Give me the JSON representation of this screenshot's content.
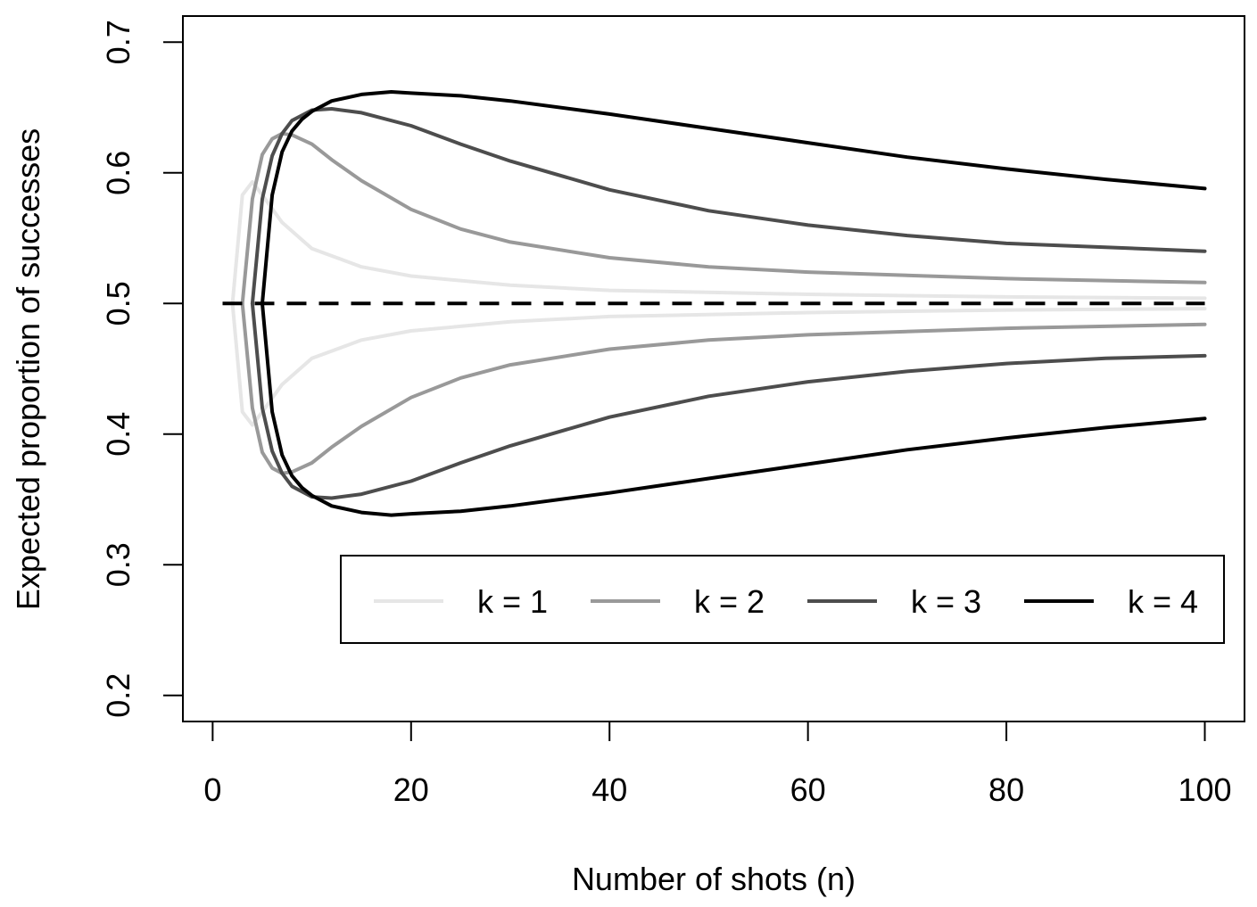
{
  "chart_data": {
    "type": "line",
    "title": "",
    "xlabel": "Number of shots (n)",
    "ylabel": "Expected proportion of successes",
    "xlim": [
      -3,
      104
    ],
    "ylim": [
      0.18,
      0.72
    ],
    "x_ticks": [
      0,
      20,
      40,
      60,
      80,
      100
    ],
    "x_tick_labels": [
      "0",
      "20",
      "40",
      "60",
      "80",
      "100"
    ],
    "y_ticks": [
      0.2,
      0.3,
      0.4,
      0.5,
      0.6,
      0.7
    ],
    "y_tick_labels": [
      "0.2",
      "0.3",
      "0.4",
      "0.5",
      "0.6",
      "0.7"
    ],
    "grid": false,
    "legend": {
      "placement": "bottom-right",
      "layout": "horizontal",
      "entries": [
        {
          "label": "k = 1",
          "color": "#e6e6e6"
        },
        {
          "label": "k = 2",
          "color": "#999999"
        },
        {
          "label": "k = 3",
          "color": "#4d4d4d"
        },
        {
          "label": "k = 4",
          "color": "#000000"
        }
      ]
    },
    "reference_line": {
      "y": 0.5,
      "x_range": [
        1,
        100
      ],
      "style": "dashed",
      "color": "#000000"
    },
    "series": [
      {
        "name": "k = 1",
        "color": "#e6e6e6",
        "branch": "upper",
        "x": [
          2,
          3,
          4,
          5,
          7,
          10,
          15,
          20,
          30,
          40,
          60,
          80,
          100
        ],
        "y": [
          0.5,
          0.583,
          0.593,
          0.583,
          0.562,
          0.542,
          0.528,
          0.521,
          0.514,
          0.51,
          0.507,
          0.505,
          0.504
        ]
      },
      {
        "name": "k = 1",
        "color": "#e6e6e6",
        "branch": "lower",
        "x": [
          2,
          3,
          4,
          5,
          7,
          10,
          15,
          20,
          30,
          40,
          60,
          80,
          100
        ],
        "y": [
          0.5,
          0.417,
          0.407,
          0.417,
          0.438,
          0.458,
          0.472,
          0.479,
          0.486,
          0.49,
          0.493,
          0.495,
          0.496
        ]
      },
      {
        "name": "k = 2",
        "color": "#999999",
        "branch": "upper",
        "x": [
          3,
          4,
          5,
          6,
          7,
          8,
          10,
          12,
          15,
          20,
          25,
          30,
          40,
          50,
          60,
          80,
          100
        ],
        "y": [
          0.5,
          0.58,
          0.614,
          0.626,
          0.63,
          0.629,
          0.622,
          0.61,
          0.594,
          0.572,
          0.557,
          0.547,
          0.535,
          0.528,
          0.524,
          0.519,
          0.516
        ]
      },
      {
        "name": "k = 2",
        "color": "#999999",
        "branch": "lower",
        "x": [
          3,
          4,
          5,
          6,
          7,
          8,
          10,
          12,
          15,
          20,
          25,
          30,
          40,
          50,
          60,
          80,
          100
        ],
        "y": [
          0.5,
          0.42,
          0.386,
          0.374,
          0.37,
          0.371,
          0.378,
          0.39,
          0.406,
          0.428,
          0.443,
          0.453,
          0.465,
          0.472,
          0.476,
          0.481,
          0.484
        ]
      },
      {
        "name": "k = 3",
        "color": "#4d4d4d",
        "branch": "upper",
        "x": [
          4,
          5,
          6,
          7,
          8,
          10,
          12,
          15,
          20,
          25,
          30,
          40,
          50,
          60,
          70,
          80,
          90,
          100
        ],
        "y": [
          0.5,
          0.58,
          0.613,
          0.63,
          0.64,
          0.648,
          0.649,
          0.646,
          0.636,
          0.622,
          0.609,
          0.587,
          0.571,
          0.56,
          0.552,
          0.546,
          0.543,
          0.54
        ]
      },
      {
        "name": "k = 3",
        "color": "#4d4d4d",
        "branch": "lower",
        "x": [
          4,
          5,
          6,
          7,
          8,
          10,
          12,
          15,
          20,
          25,
          30,
          40,
          50,
          60,
          70,
          80,
          90,
          100
        ],
        "y": [
          0.5,
          0.42,
          0.387,
          0.37,
          0.36,
          0.352,
          0.351,
          0.354,
          0.364,
          0.378,
          0.391,
          0.413,
          0.429,
          0.44,
          0.448,
          0.454,
          0.458,
          0.46
        ]
      },
      {
        "name": "k = 4",
        "color": "#000000",
        "branch": "upper",
        "x": [
          5,
          6,
          7,
          8,
          9,
          10,
          12,
          15,
          18,
          20,
          25,
          30,
          40,
          50,
          60,
          70,
          80,
          90,
          100
        ],
        "y": [
          0.5,
          0.583,
          0.616,
          0.632,
          0.641,
          0.647,
          0.655,
          0.66,
          0.662,
          0.661,
          0.659,
          0.655,
          0.645,
          0.634,
          0.623,
          0.612,
          0.603,
          0.595,
          0.588
        ]
      },
      {
        "name": "k = 4",
        "color": "#000000",
        "branch": "lower",
        "x": [
          5,
          6,
          7,
          8,
          9,
          10,
          12,
          15,
          18,
          20,
          25,
          30,
          40,
          50,
          60,
          70,
          80,
          90,
          100
        ],
        "y": [
          0.5,
          0.417,
          0.384,
          0.368,
          0.359,
          0.353,
          0.345,
          0.34,
          0.338,
          0.339,
          0.341,
          0.345,
          0.355,
          0.366,
          0.377,
          0.388,
          0.397,
          0.405,
          0.412
        ]
      }
    ]
  }
}
